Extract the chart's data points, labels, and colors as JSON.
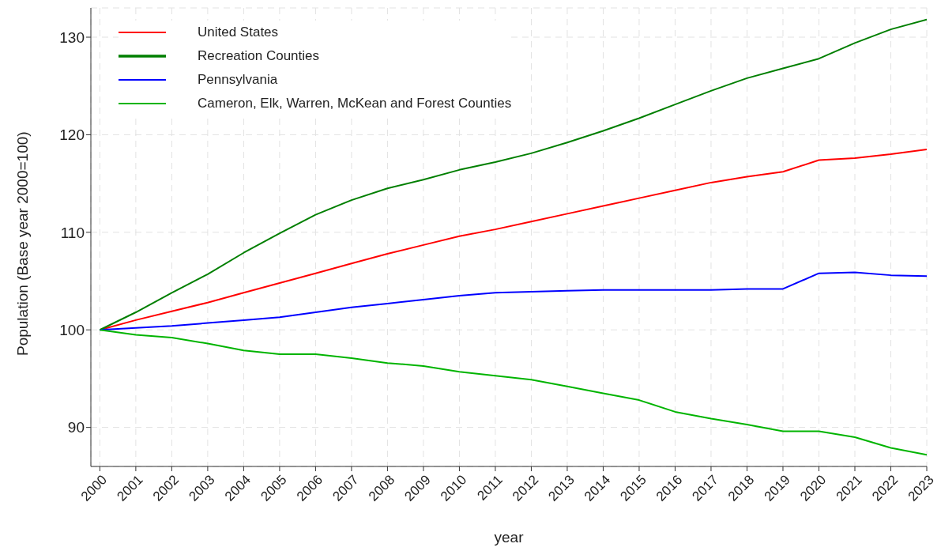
{
  "chart_data": {
    "type": "line",
    "xlabel": "year",
    "ylabel": "Population (Base year 2000=100)",
    "x": [
      2000,
      2001,
      2002,
      2003,
      2004,
      2005,
      2006,
      2007,
      2008,
      2009,
      2010,
      2011,
      2012,
      2013,
      2014,
      2015,
      2016,
      2017,
      2018,
      2019,
      2020,
      2021,
      2022,
      2023
    ],
    "series": [
      {
        "name": "United States",
        "color": "#ff0000",
        "values": [
          100,
          101,
          101.9,
          102.8,
          103.8,
          104.8,
          105.8,
          106.8,
          107.8,
          108.7,
          109.6,
          110.3,
          111.1,
          111.9,
          112.7,
          113.5,
          114.3,
          115.1,
          115.7,
          116.2,
          117.4,
          117.6,
          118.0,
          118.5
        ]
      },
      {
        "name": "Recreation Counties",
        "color": "#007f00",
        "values": [
          100,
          101.8,
          103.8,
          105.7,
          107.9,
          109.9,
          111.8,
          113.3,
          114.5,
          115.4,
          116.4,
          117.2,
          118.1,
          119.2,
          120.4,
          121.7,
          123.1,
          124.5,
          125.8,
          126.8,
          127.8,
          129.4,
          130.8,
          131.8
        ]
      },
      {
        "name": "Pennsylvania",
        "color": "#0000ff",
        "values": [
          100,
          100.2,
          100.4,
          100.7,
          101.0,
          101.3,
          101.8,
          102.3,
          102.7,
          103.1,
          103.5,
          103.8,
          103.9,
          104.0,
          104.1,
          104.1,
          104.1,
          104.1,
          104.2,
          104.2,
          105.8,
          105.9,
          105.6,
          105.5
        ]
      },
      {
        "name": "Cameron, Elk, Warren, McKean and Forest Counties",
        "color": "#00b400",
        "values": [
          100,
          99.5,
          99.2,
          98.6,
          97.9,
          97.5,
          97.5,
          97.1,
          96.6,
          96.3,
          95.7,
          95.3,
          94.9,
          94.2,
          93.5,
          92.8,
          91.6,
          90.9,
          90.3,
          89.6,
          89.6,
          89.0,
          87.9,
          87.2
        ]
      }
    ],
    "xlim": [
      1999.75,
      2023
    ],
    "xticks": [
      2000,
      2001,
      2002,
      2003,
      2004,
      2005,
      2006,
      2007,
      2008,
      2009,
      2010,
      2011,
      2012,
      2013,
      2014,
      2015,
      2016,
      2017,
      2018,
      2019,
      2020,
      2021,
      2022,
      2023
    ],
    "ylim": [
      86,
      133
    ],
    "yticks": [
      90,
      100,
      110,
      120,
      130
    ],
    "grid": true,
    "legend": "top left",
    "marker": "none",
    "line_style": "solid"
  }
}
